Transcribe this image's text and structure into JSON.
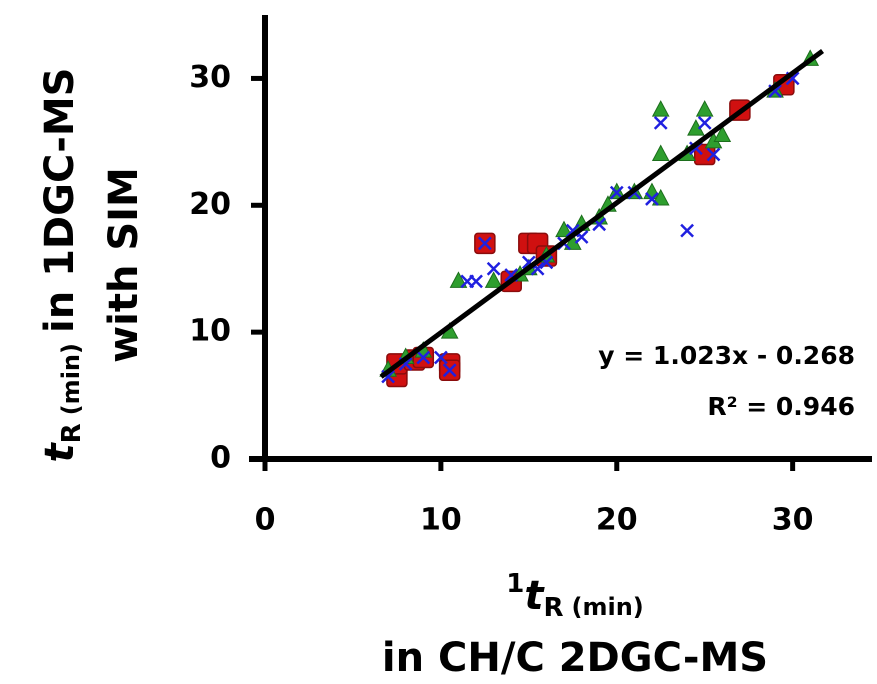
{
  "chart_data": {
    "type": "scatter",
    "x_label": {
      "sup": "1",
      "t": "t",
      "sub": "R",
      "unit": "(min)",
      "line2": "in CH/C 2DGC-MS"
    },
    "y_label": {
      "t": "t",
      "sub": "R",
      "unit": "(min)",
      "rest": "in 1DGC-MS",
      "line2": "with SIM"
    },
    "xlim": [
      0,
      34
    ],
    "ylim": [
      0,
      35
    ],
    "xticks": [
      0,
      10,
      20,
      30
    ],
    "yticks": [
      0,
      10,
      20,
      30
    ],
    "trendline": {
      "slope": 1.023,
      "intercept": -0.268,
      "x_range": [
        6.6,
        31.7
      ],
      "color": "#000000"
    },
    "annotations": [
      "y = 1.023x - 0.268",
      "R² = 0.946"
    ],
    "series": [
      {
        "marker": "square",
        "color": "#d01010",
        "x": [
          7.5,
          7.5,
          8.5,
          9,
          10.5,
          10.5,
          12.5,
          14,
          15,
          15.5,
          16,
          25,
          27,
          29.5
        ],
        "y": [
          6.5,
          7.5,
          7.8,
          8,
          7.5,
          7,
          17,
          14,
          17,
          17,
          16,
          24,
          27.5,
          29.5
        ]
      },
      {
        "marker": "triangle",
        "color": "#2e9e2e",
        "x": [
          7,
          8,
          9,
          10.5,
          11,
          13,
          14.5,
          15,
          16,
          17,
          17.5,
          18,
          19,
          19.5,
          20,
          21,
          22,
          22.5,
          22.5,
          22.5,
          24,
          24.5,
          25,
          25.5,
          26,
          29,
          31
        ],
        "y": [
          7,
          8,
          8.5,
          10,
          14,
          14,
          14.5,
          15,
          16,
          18,
          17,
          18.5,
          19,
          20,
          21,
          21,
          21,
          20.5,
          24,
          27.5,
          24,
          26,
          27.5,
          25,
          25.5,
          29,
          31.5
        ]
      },
      {
        "marker": "x",
        "color": "#2020e0",
        "x": [
          7,
          8,
          9,
          10,
          10.5,
          11.5,
          12,
          12.5,
          13,
          14,
          15,
          15.5,
          16,
          17,
          17.5,
          18,
          19,
          20,
          21,
          22,
          22.5,
          24,
          24.5,
          25,
          25.5,
          29,
          30
        ],
        "y": [
          6.5,
          7.5,
          8,
          8,
          7,
          14,
          14,
          17,
          15,
          14.5,
          15.5,
          15,
          15.5,
          17,
          18,
          17.5,
          18.5,
          21,
          21,
          20.5,
          26.5,
          18,
          24.5,
          26.5,
          24,
          29,
          30
        ]
      }
    ]
  }
}
